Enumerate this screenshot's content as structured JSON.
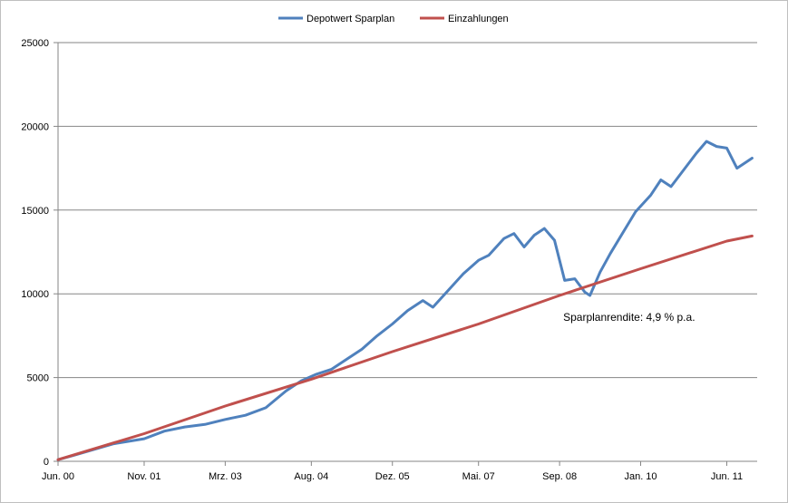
{
  "chart_data": {
    "type": "line",
    "title": "",
    "xlabel": "",
    "ylabel": "",
    "ylim": [
      0,
      25000
    ],
    "y_ticks": [
      0,
      5000,
      10000,
      15000,
      20000,
      25000
    ],
    "y_tick_labels": [
      "0",
      "5000",
      "10000",
      "15000",
      "20000",
      "25000"
    ],
    "x_range": [
      "2000-06",
      "2011-12"
    ],
    "x_ticks": [
      "2000-06",
      "2001-11",
      "2003-03",
      "2004-08",
      "2005-12",
      "2007-05",
      "2008-09",
      "2010-01",
      "2011-06"
    ],
    "x_tick_labels": [
      "Jun. 00",
      "Nov. 01",
      "Mrz. 03",
      "Aug. 04",
      "Dez. 05",
      "Mai. 07",
      "Sep. 08",
      "Jan. 10",
      "Jun. 11"
    ],
    "grid": "horizontal",
    "legend": "top",
    "series": [
      {
        "name": "Depotwert Sparplan",
        "color": "#4f81bd",
        "points": [
          [
            "2000-06",
            100
          ],
          [
            "2000-09",
            350
          ],
          [
            "2001-01",
            700
          ],
          [
            "2001-05",
            1050
          ],
          [
            "2001-11",
            1350
          ],
          [
            "2002-03",
            1800
          ],
          [
            "2002-07",
            2050
          ],
          [
            "2002-11",
            2200
          ],
          [
            "2003-03",
            2500
          ],
          [
            "2003-07",
            2750
          ],
          [
            "2003-11",
            3200
          ],
          [
            "2004-03",
            4200
          ],
          [
            "2004-06",
            4800
          ],
          [
            "2004-09",
            5200
          ],
          [
            "2004-12",
            5500
          ],
          [
            "2005-03",
            6100
          ],
          [
            "2005-06",
            6700
          ],
          [
            "2005-09",
            7500
          ],
          [
            "2005-12",
            8200
          ],
          [
            "2006-03",
            9000
          ],
          [
            "2006-06",
            9600
          ],
          [
            "2006-08",
            9200
          ],
          [
            "2006-11",
            10200
          ],
          [
            "2007-02",
            11200
          ],
          [
            "2007-05",
            12000
          ],
          [
            "2007-07",
            12300
          ],
          [
            "2007-10",
            13300
          ],
          [
            "2007-12",
            13600
          ],
          [
            "2008-02",
            12800
          ],
          [
            "2008-04",
            13500
          ],
          [
            "2008-06",
            13900
          ],
          [
            "2008-08",
            13200
          ],
          [
            "2008-09",
            12000
          ],
          [
            "2008-10",
            10800
          ],
          [
            "2008-12",
            10900
          ],
          [
            "2009-02",
            10100
          ],
          [
            "2009-03",
            9900
          ],
          [
            "2009-05",
            11300
          ],
          [
            "2009-07",
            12400
          ],
          [
            "2009-10",
            13900
          ],
          [
            "2009-12",
            14900
          ],
          [
            "2010-03",
            15900
          ],
          [
            "2010-05",
            16800
          ],
          [
            "2010-07",
            16400
          ],
          [
            "2010-09",
            17200
          ],
          [
            "2010-12",
            18400
          ],
          [
            "2011-02",
            19100
          ],
          [
            "2011-04",
            18800
          ],
          [
            "2011-06",
            18700
          ],
          [
            "2011-08",
            17500
          ],
          [
            "2011-10",
            17900
          ],
          [
            "2011-11",
            18100
          ]
        ]
      },
      {
        "name": "Einzahlungen",
        "color": "#c0504d",
        "points": [
          [
            "2000-06",
            100
          ],
          [
            "2001-11",
            1650
          ],
          [
            "2003-03",
            3300
          ],
          [
            "2004-08",
            4900
          ],
          [
            "2005-12",
            6550
          ],
          [
            "2007-05",
            8200
          ],
          [
            "2008-09",
            9900
          ],
          [
            "2010-01",
            11500
          ],
          [
            "2011-06",
            13150
          ],
          [
            "2011-11",
            13450
          ]
        ]
      }
    ],
    "annotations": [
      {
        "text": "Sparplanrendite: 4,9 % p.a.",
        "x": "2008-09",
        "y": 8600
      }
    ]
  }
}
